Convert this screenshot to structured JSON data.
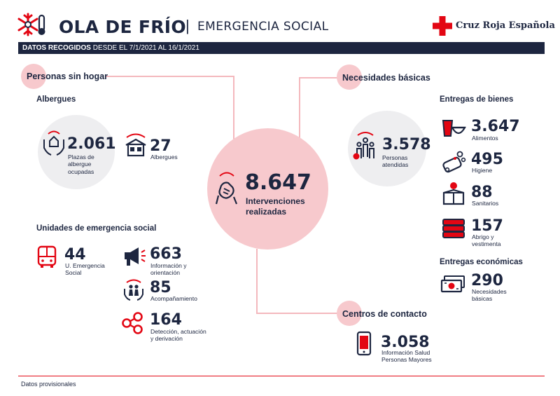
{
  "header": {
    "title": "OLA DE FRÍO",
    "separator": "|",
    "subtitle": "EMERGENCIA SOCIAL",
    "brand": "Cruz Roja Española"
  },
  "databar": {
    "bold": "DATOS RECOGIDOS",
    "rest": "DESDE EL 7/1/2021 AL 16/1/2021"
  },
  "sections": {
    "homeless": "Personas sin hogar",
    "basic_needs": "Necesidades básicas",
    "contact_centers": "Centros de contacto"
  },
  "homeless": {
    "shelters_heading": "Albergues",
    "beds": {
      "value": "2.061",
      "label_1": "Plazas de",
      "label_2": "albergue",
      "label_3": "ocupadas"
    },
    "shelters": {
      "value": "27",
      "label": "Albergues"
    },
    "units_heading": "Unidades de emergencia social",
    "units": {
      "value": "44",
      "label_1": "U. Emergencia",
      "label_2": "Social"
    },
    "info": {
      "value": "663",
      "label_1": "Información y",
      "label_2": "orientación"
    },
    "accompaniment": {
      "value": "85",
      "label": "Acompañamiento"
    },
    "detection": {
      "value": "164",
      "label_1": "Detección, actuación",
      "label_2": "y derivación"
    }
  },
  "center": {
    "value": "8.647",
    "label_1": "Intervenciones",
    "label_2": "realizadas"
  },
  "basic_needs": {
    "people": {
      "value": "3.578",
      "label_1": "Personas",
      "label_2": "atendidas"
    },
    "goods_heading": "Entregas de bienes",
    "food": {
      "value": "3.647",
      "label": "Alimentos"
    },
    "hygiene": {
      "value": "495",
      "label": "Higiene"
    },
    "sanitary": {
      "value": "88",
      "label": "Sanitarios"
    },
    "clothing": {
      "value": "157",
      "label_1": "Abrigo y",
      "label_2": "vestimenta"
    },
    "economic_heading": "Entregas económicas",
    "economic": {
      "value": "290",
      "label_1": "Necesidades",
      "label_2": "básicas"
    }
  },
  "contact": {
    "value": "3.058",
    "label_1": "Información Salud",
    "label_2": "Personas Mayores"
  },
  "footer": {
    "note": "Datos provisionales"
  },
  "colors": {
    "navy": "#1d2640",
    "red": "#e30613",
    "pink": "#f7c9cd",
    "grey": "#eeeef0"
  },
  "icons": {
    "logo": "snowflake-thermometer-icon",
    "brand": "red-cross-icon",
    "beds": "hands-house-icon",
    "shelters": "house-icon",
    "units": "bus-icon",
    "info": "megaphone-icon",
    "accompaniment": "people-hands-icon",
    "detection": "share-nodes-icon",
    "center": "handshake-icon",
    "people": "group-people-icon",
    "food": "cup-bowl-icon",
    "hygiene": "soap-bubbles-icon",
    "sanitary": "box-person-icon",
    "clothing": "folded-clothes-icon",
    "economic": "banknote-icon",
    "contact": "phone-icon"
  }
}
